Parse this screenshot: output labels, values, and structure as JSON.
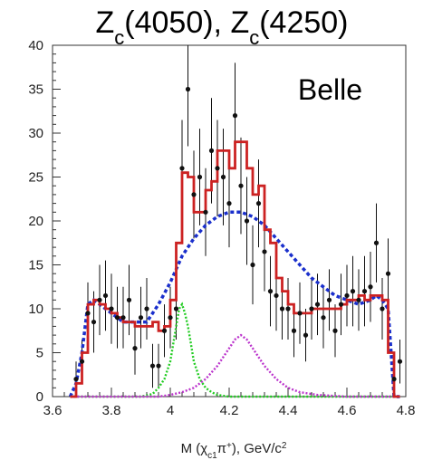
{
  "chart_data": {
    "type": "histogram",
    "title_parts": [
      "Z",
      "c",
      "(4050), Z",
      "c",
      "(4250)"
    ],
    "annotation": "Belle",
    "xlabel_parts": [
      "M (χ",
      "c1",
      "π",
      "+",
      "), GeV/c",
      "2"
    ],
    "xlim": [
      3.6,
      4.8
    ],
    "ylim": [
      0,
      40
    ],
    "xticks": [
      3.6,
      3.8,
      4.0,
      4.2,
      4.4,
      4.6,
      4.8
    ],
    "xtick_labels": [
      "3.6",
      "3.8",
      "4",
      "4.2",
      "4.4",
      "4.6",
      "4.8"
    ],
    "yticks": [
      0,
      5,
      10,
      15,
      20,
      25,
      30,
      35,
      40
    ],
    "ytick_labels": [
      "0",
      "5",
      "10",
      "15",
      "20",
      "25",
      "30",
      "35",
      "40"
    ],
    "colors": {
      "data": "#111111",
      "total_fit": "#cc2222",
      "background": "#1a2fcc",
      "zc4050": "#22cc22",
      "zc4250": "#bb33cc"
    },
    "series": [
      {
        "kind": "points",
        "x": [
          3.68,
          3.7,
          3.72,
          3.74,
          3.76,
          3.78,
          3.8,
          3.82,
          3.84,
          3.86,
          3.88,
          3.9,
          3.92,
          3.94,
          3.96,
          3.98,
          4.0,
          4.02,
          4.04,
          4.06,
          4.08,
          4.1,
          4.12,
          4.14,
          4.16,
          4.18,
          4.2,
          4.22,
          4.24,
          4.26,
          4.28,
          4.3,
          4.32,
          4.34,
          4.36,
          4.38,
          4.4,
          4.42,
          4.44,
          4.46,
          4.48,
          4.5,
          4.52,
          4.54,
          4.56,
          4.58,
          4.6,
          4.62,
          4.64,
          4.66,
          4.68,
          4.7,
          4.72,
          4.74,
          4.76,
          4.78
        ],
        "y": [
          2,
          4,
          9.5,
          8.5,
          11,
          11.5,
          10,
          9,
          9,
          11,
          5.5,
          9,
          10,
          3.5,
          3.5,
          7.5,
          9,
          10,
          26,
          35,
          23,
          25,
          21,
          28,
          26,
          25,
          22,
          32,
          24,
          20,
          15,
          22,
          16.5,
          12,
          11.5,
          10,
          10,
          7.5,
          9.5,
          7,
          10,
          10.5,
          9,
          11,
          7.5,
          10.5,
          11.5,
          12,
          11,
          12,
          12.5,
          17.5,
          10,
          14,
          2,
          4
        ],
        "yerr": [
          2,
          2.5,
          3.5,
          3.5,
          4,
          4,
          4,
          3.5,
          3.5,
          4,
          3,
          3.5,
          3.5,
          2.5,
          2.5,
          3,
          3.5,
          3.5,
          5.5,
          6.5,
          5,
          5.5,
          5,
          6,
          5.5,
          5.5,
          5,
          6,
          5.5,
          5,
          4.5,
          5,
          4.5,
          4,
          4,
          3.5,
          3.5,
          3,
          3.5,
          3,
          3.5,
          3.5,
          3.5,
          3.5,
          3,
          3.5,
          3.5,
          4,
          3.5,
          4,
          4,
          4.5,
          3.5,
          4,
          2,
          2.5
        ]
      },
      {
        "kind": "step",
        "x": [
          3.66,
          3.68,
          3.7,
          3.72,
          3.74,
          3.76,
          3.78,
          3.8,
          3.82,
          3.84,
          3.86,
          3.88,
          3.9,
          3.92,
          3.94,
          3.96,
          3.98,
          4.0,
          4.02,
          4.04,
          4.06,
          4.08,
          4.1,
          4.12,
          4.14,
          4.16,
          4.18,
          4.2,
          4.22,
          4.24,
          4.26,
          4.28,
          4.3,
          4.32,
          4.34,
          4.36,
          4.38,
          4.4,
          4.42,
          4.44,
          4.46,
          4.48,
          4.5,
          4.52,
          4.54,
          4.56,
          4.58,
          4.6,
          4.62,
          4.64,
          4.66,
          4.68,
          4.7,
          4.72,
          4.74,
          4.76,
          4.78
        ],
        "y": [
          0,
          1.5,
          5,
          10.5,
          11,
          10.5,
          10,
          9.5,
          9,
          8.5,
          8.5,
          8,
          8,
          8,
          8.5,
          7.5,
          8,
          11,
          17.5,
          25.5,
          25,
          21,
          21,
          23.5,
          24.5,
          28,
          28,
          26,
          29,
          29,
          26,
          23,
          24,
          19,
          17.5,
          13.5,
          12,
          10.5,
          9.5,
          9.5,
          9.5,
          10,
          10,
          10,
          10,
          10,
          10.5,
          11,
          11,
          11.5,
          11,
          11.5,
          11.5,
          11,
          5,
          0,
          0
        ]
      },
      {
        "kind": "line",
        "dash": "4,3",
        "x": [
          3.66,
          3.68,
          3.7,
          3.72,
          3.74,
          3.76,
          3.8,
          3.84,
          3.88,
          3.92,
          3.96,
          4.0,
          4.04,
          4.08,
          4.12,
          4.16,
          4.2,
          4.24,
          4.28,
          4.32,
          4.36,
          4.4,
          4.44,
          4.48,
          4.52,
          4.56,
          4.6,
          4.64,
          4.68,
          4.7,
          4.72,
          4.74,
          4.75,
          4.76,
          4.78
        ],
        "y": [
          0,
          1.5,
          5,
          10.5,
          11,
          10.5,
          9.5,
          8.5,
          8.5,
          8.5,
          10.5,
          13,
          16,
          18,
          19.5,
          20.5,
          21,
          21,
          20.5,
          19.5,
          18,
          16.5,
          15,
          13.5,
          12.5,
          11.5,
          11,
          10.5,
          11,
          11.5,
          11,
          10,
          5,
          0,
          0
        ]
      },
      {
        "kind": "line",
        "dash": "2,2",
        "x": [
          3.66,
          3.9,
          3.94,
          3.96,
          3.98,
          4.0,
          4.02,
          4.03,
          4.04,
          4.05,
          4.06,
          4.07,
          4.08,
          4.1,
          4.12,
          4.14,
          4.16,
          4.2,
          4.26,
          4.78
        ],
        "y": [
          0,
          0,
          0.3,
          1,
          2,
          4,
          8,
          10,
          10.5,
          9.5,
          8,
          6,
          4,
          2,
          1,
          0.5,
          0.2,
          0,
          0,
          0
        ]
      },
      {
        "kind": "line",
        "dash": "2,2",
        "x": [
          3.66,
          3.96,
          4.0,
          4.04,
          4.08,
          4.12,
          4.16,
          4.2,
          4.22,
          4.24,
          4.26,
          4.28,
          4.3,
          4.32,
          4.36,
          4.4,
          4.44,
          4.5,
          4.6,
          4.78
        ],
        "y": [
          0,
          0,
          0.2,
          0.5,
          1,
          2,
          3.5,
          5.5,
          6.5,
          7,
          6.5,
          5.5,
          4.5,
          3.5,
          2,
          1,
          0.5,
          0.2,
          0,
          0
        ]
      }
    ]
  }
}
